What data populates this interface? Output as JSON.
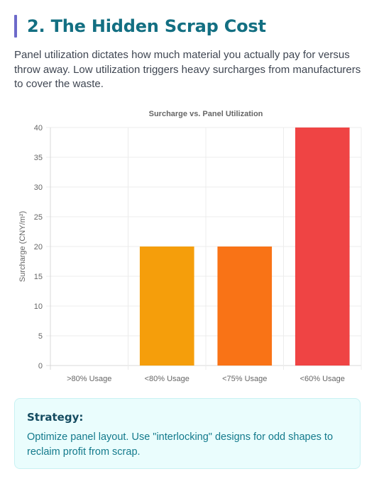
{
  "section": {
    "title": "2. The Hidden Scrap Cost",
    "intro": "Panel utilization dictates how much material you actually pay for versus throw away. Low utilization triggers heavy surcharges from manufacturers to cover the waste."
  },
  "chart_data": {
    "type": "bar",
    "title": "Surcharge vs. Panel Utilization",
    "xlabel": "",
    "ylabel": "Surcharge (CNY/m²)",
    "categories": [
      ">80% Usage",
      "<80% Usage",
      "<75% Usage",
      "<60% Usage"
    ],
    "values": [
      0,
      20,
      20,
      40
    ],
    "colors": [
      "#f59e0b",
      "#f59e0b",
      "#f97316",
      "#ef4444"
    ],
    "ylim": [
      0,
      40
    ],
    "yticks": [
      0,
      5,
      10,
      15,
      20,
      25,
      30,
      35,
      40
    ],
    "grid": true,
    "legend": "none"
  },
  "strategy": {
    "title": "Strategy:",
    "text": "Optimize panel layout. Use \"interlocking\" designs for odd shapes to reclaim profit from scrap."
  }
}
